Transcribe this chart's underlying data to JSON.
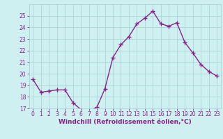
{
  "x": [
    0,
    1,
    2,
    3,
    4,
    5,
    6,
    7,
    8,
    9,
    10,
    11,
    12,
    13,
    14,
    15,
    16,
    17,
    18,
    19,
    20,
    21,
    22,
    23
  ],
  "y": [
    19.5,
    18.4,
    18.5,
    18.6,
    18.6,
    17.5,
    16.9,
    16.8,
    17.1,
    18.7,
    21.4,
    22.5,
    23.2,
    24.3,
    24.8,
    25.4,
    24.3,
    24.1,
    24.4,
    22.7,
    21.8,
    20.8,
    20.2,
    19.8
  ],
  "line_color": "#882288",
  "marker": "+",
  "marker_size": 4,
  "marker_lw": 1.0,
  "bg_color": "#cff0f0",
  "grid_color": "#aad4d4",
  "xlabel": "Windchill (Refroidissement éolien,°C)",
  "ylim": [
    17,
    26
  ],
  "yticks": [
    17,
    18,
    19,
    20,
    21,
    22,
    23,
    24,
    25
  ],
  "xticks": [
    0,
    1,
    2,
    3,
    4,
    5,
    6,
    7,
    8,
    9,
    10,
    11,
    12,
    13,
    14,
    15,
    16,
    17,
    18,
    19,
    20,
    21,
    22,
    23
  ],
  "label_color": "#882288",
  "line_width": 1.0,
  "tick_fontsize": 5.5,
  "xlabel_fontsize": 6.5
}
